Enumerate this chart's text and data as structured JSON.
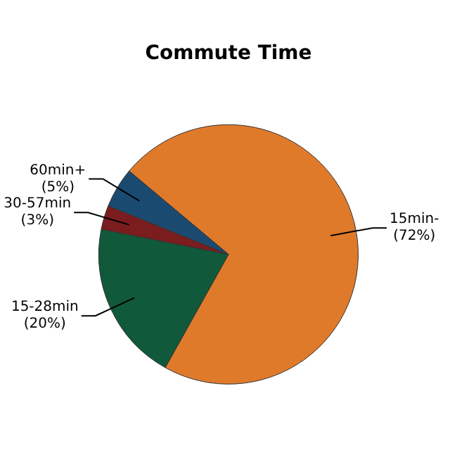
{
  "chart_data": {
    "type": "pie",
    "title": "Commute Time",
    "categories": [
      "15min-",
      "15-28min",
      "30-57min",
      "60min+"
    ],
    "values": [
      72,
      20,
      3,
      5
    ],
    "colors": [
      "#e07a2b",
      "#10593a",
      "#7b1c1f",
      "#1b4a70"
    ],
    "value_labels": [
      "(72%)",
      "(20%)",
      "(3%)",
      "(5%)"
    ],
    "legend": false
  }
}
